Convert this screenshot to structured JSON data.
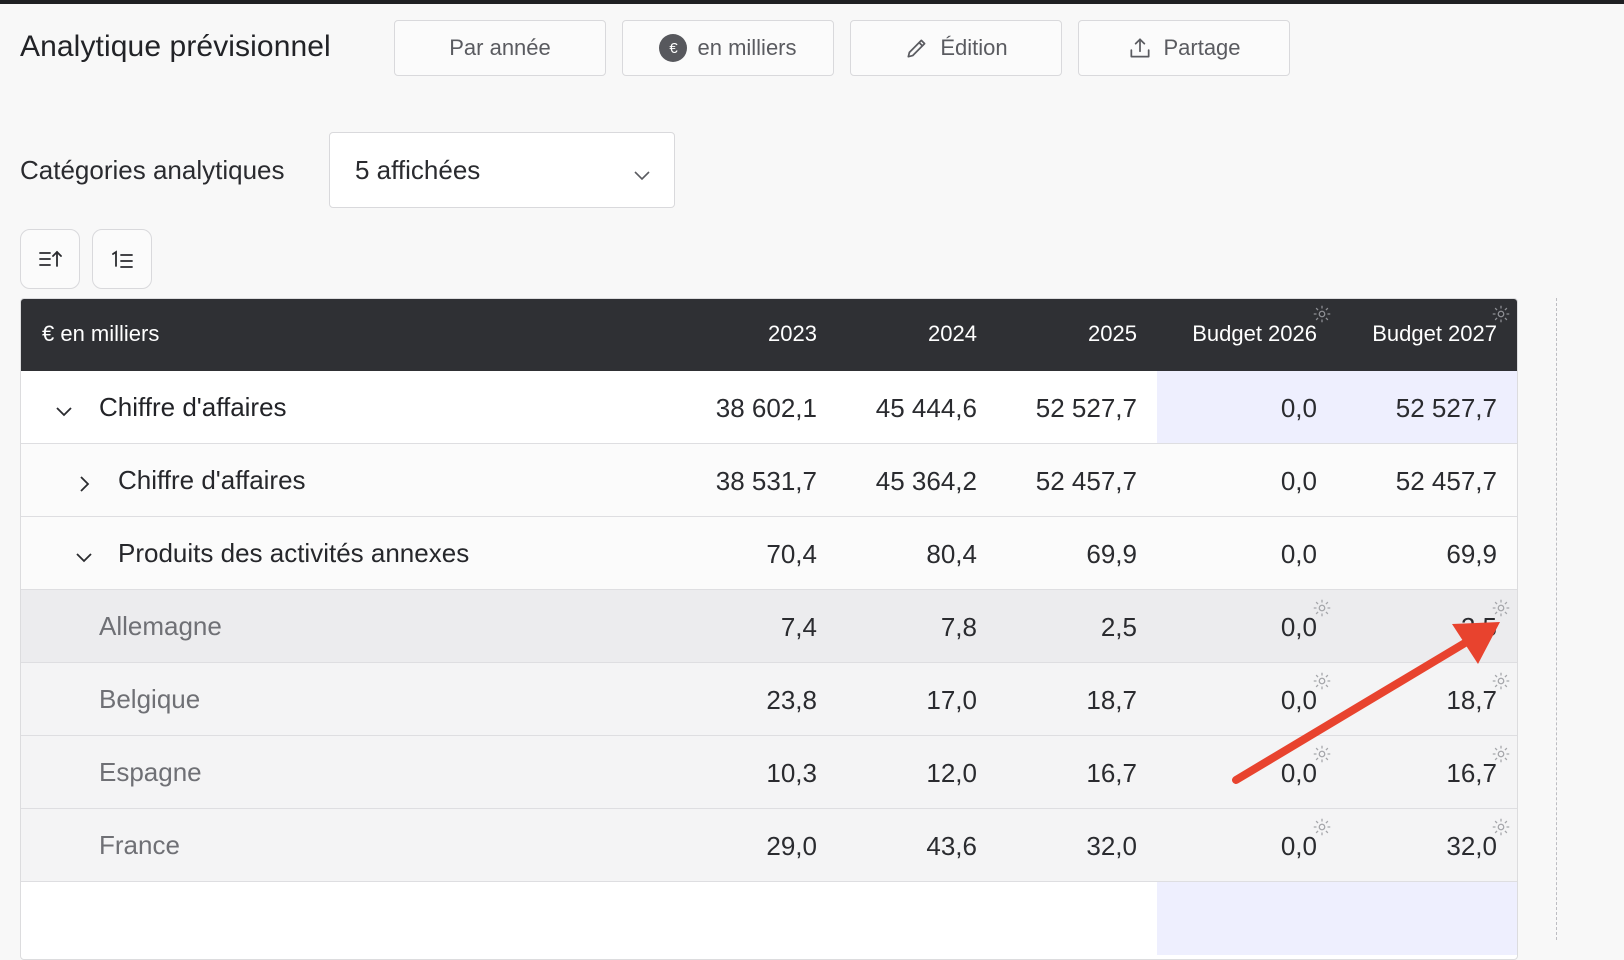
{
  "header": {
    "title": "Analytique prévisionnel",
    "buttons": {
      "period": "Par année",
      "units": "en milliers",
      "units_badge": "€",
      "edit": "Édition",
      "share": "Partage"
    }
  },
  "filters": {
    "label": "Catégories analytiques",
    "selected": "5 affichées"
  },
  "table": {
    "unit_label": "€ en milliers",
    "columns": [
      "2023",
      "2024",
      "2025",
      "Budget 2026",
      "Budget 2027"
    ],
    "rows": [
      {
        "label": "Chiffre d'affaires",
        "values": [
          "38 602,1",
          "45 444,6",
          "52 527,7",
          "0,0",
          "52 527,7"
        ]
      },
      {
        "label": "Chiffre d'affaires",
        "values": [
          "38 531,7",
          "45 364,2",
          "52 457,7",
          "0,0",
          "52 457,7"
        ]
      },
      {
        "label": "Produits des activités annexes",
        "values": [
          "70,4",
          "80,4",
          "69,9",
          "0,0",
          "69,9"
        ]
      },
      {
        "label": "Allemagne",
        "values": [
          "7,4",
          "7,8",
          "2,5",
          "0,0",
          "2,5"
        ]
      },
      {
        "label": "Belgique",
        "values": [
          "23,8",
          "17,0",
          "18,7",
          "0,0",
          "18,7"
        ]
      },
      {
        "label": "Espagne",
        "values": [
          "10,3",
          "12,0",
          "16,7",
          "0,0",
          "16,7"
        ]
      },
      {
        "label": "France",
        "values": [
          "29,0",
          "43,6",
          "32,0",
          "0,0",
          "32,0"
        ]
      }
    ]
  },
  "colors": {
    "header_bg": "#2f3034",
    "budget_highlight": "#eeeffe",
    "annotation_arrow": "#e8432e"
  }
}
